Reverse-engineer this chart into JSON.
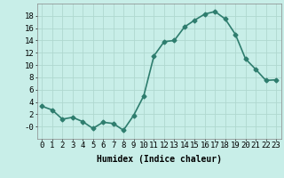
{
  "x": [
    0,
    1,
    2,
    3,
    4,
    5,
    6,
    7,
    8,
    9,
    10,
    11,
    12,
    13,
    14,
    15,
    16,
    17,
    18,
    19,
    20,
    21,
    22,
    23
  ],
  "y": [
    3.3,
    2.7,
    1.2,
    1.5,
    0.8,
    -0.3,
    0.7,
    0.5,
    -0.6,
    1.8,
    5.0,
    11.5,
    13.8,
    14.0,
    16.2,
    17.3,
    18.3,
    18.7,
    17.5,
    15.0,
    11.0,
    9.3,
    7.5,
    7.6
  ],
  "line_color": "#2e7d6e",
  "marker": "D",
  "marker_size": 2.5,
  "bg_color": "#c8eee8",
  "grid_color": "#afd8d0",
  "xlabel": "Humidex (Indice chaleur)",
  "xlim": [
    -0.5,
    23.5
  ],
  "ylim": [
    -2,
    20
  ],
  "yticks": [
    0,
    2,
    4,
    6,
    8,
    10,
    12,
    14,
    16,
    18
  ],
  "ytick_labels": [
    "-0",
    "2",
    "4",
    "6",
    "8",
    "10",
    "12",
    "14",
    "16",
    "18"
  ],
  "xtick_labels": [
    "0",
    "1",
    "2",
    "3",
    "4",
    "5",
    "6",
    "7",
    "8",
    "9",
    "10",
    "11",
    "12",
    "13",
    "14",
    "15",
    "16",
    "17",
    "18",
    "19",
    "20",
    "21",
    "22",
    "23"
  ],
  "xlabel_fontsize": 7,
  "tick_fontsize": 6.5,
  "line_width": 1.2
}
